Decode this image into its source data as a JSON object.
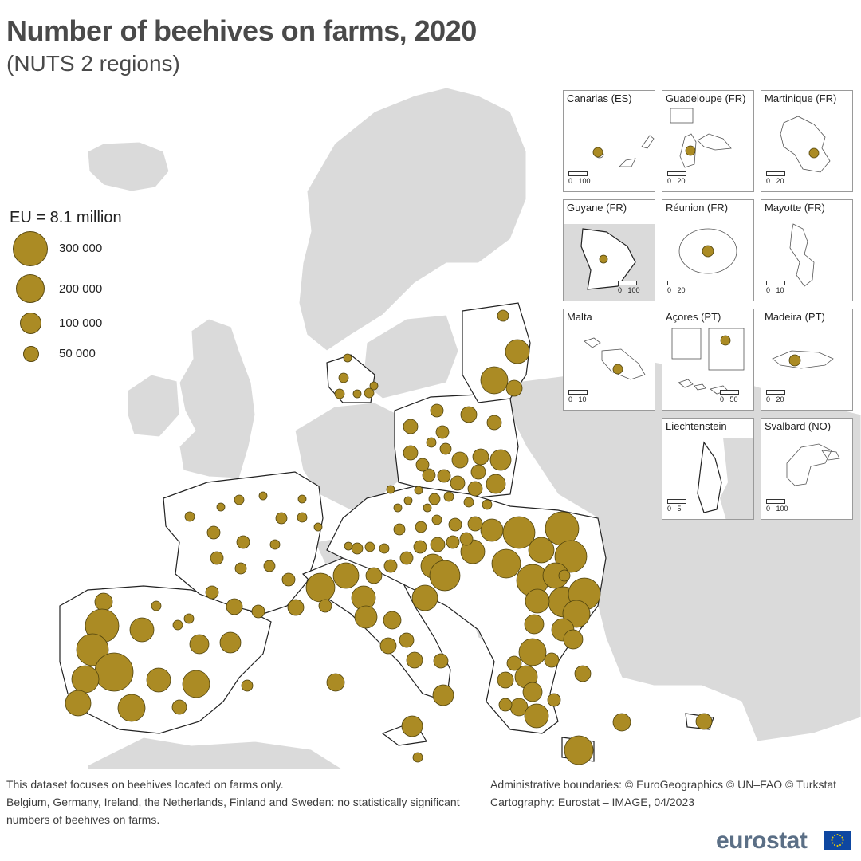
{
  "title": "Number of beehives on farms, 2020",
  "subtitle": "(NUTS 2 regions)",
  "legend": {
    "title": "EU = 8.1 million",
    "items": [
      {
        "label": "300 000",
        "value": 300000
      },
      {
        "label": "200 000",
        "value": 200000
      },
      {
        "label": "100 000",
        "value": 100000
      },
      {
        "label": "50 000",
        "value": 50000
      }
    ]
  },
  "insets": [
    {
      "name": "Canarias (ES)",
      "scale_label_0": "0",
      "scale_label_1": "100"
    },
    {
      "name": "Guadeloupe (FR)",
      "scale_label_0": "0",
      "scale_label_1": "20"
    },
    {
      "name": "Martinique (FR)",
      "scale_label_0": "0",
      "scale_label_1": "20"
    },
    {
      "name": "Guyane (FR)",
      "scale_label_0": "0",
      "scale_label_1": "100"
    },
    {
      "name": "Réunion (FR)",
      "scale_label_0": "0",
      "scale_label_1": "20"
    },
    {
      "name": "Mayotte (FR)",
      "scale_label_0": "0",
      "scale_label_1": "10"
    },
    {
      "name": "Malta",
      "scale_label_0": "0",
      "scale_label_1": "10"
    },
    {
      "name": "Açores (PT)",
      "scale_label_0": "0",
      "scale_label_1": "50"
    },
    {
      "name": "Madeira (PT)",
      "scale_label_0": "0",
      "scale_label_1": "20"
    },
    {
      "name": "Liechtenstein",
      "scale_label_0": "0",
      "scale_label_1": "5"
    },
    {
      "name": "Svalbard (NO)",
      "scale_label_0": "0",
      "scale_label_1": "100"
    }
  ],
  "footnotes": {
    "line1": "This dataset focuses on beehives located on farms only.",
    "line2": "Belgium, Germany, Ireland, the Netherlands, Finland and Sweden: no statistically significant numbers of beehives on farms.",
    "credit1": "Administrative boundaries: © EuroGeographics © UN–FAO © Turkstat",
    "credit2": "Cartography: Eurostat – IMAGE, 04/2023"
  },
  "brand": "eurostat",
  "colors": {
    "symbol": "#ab8b24",
    "land_non_eu": "#dadada",
    "land_eu": "#ffffff",
    "sea": "#ffffff"
  }
}
